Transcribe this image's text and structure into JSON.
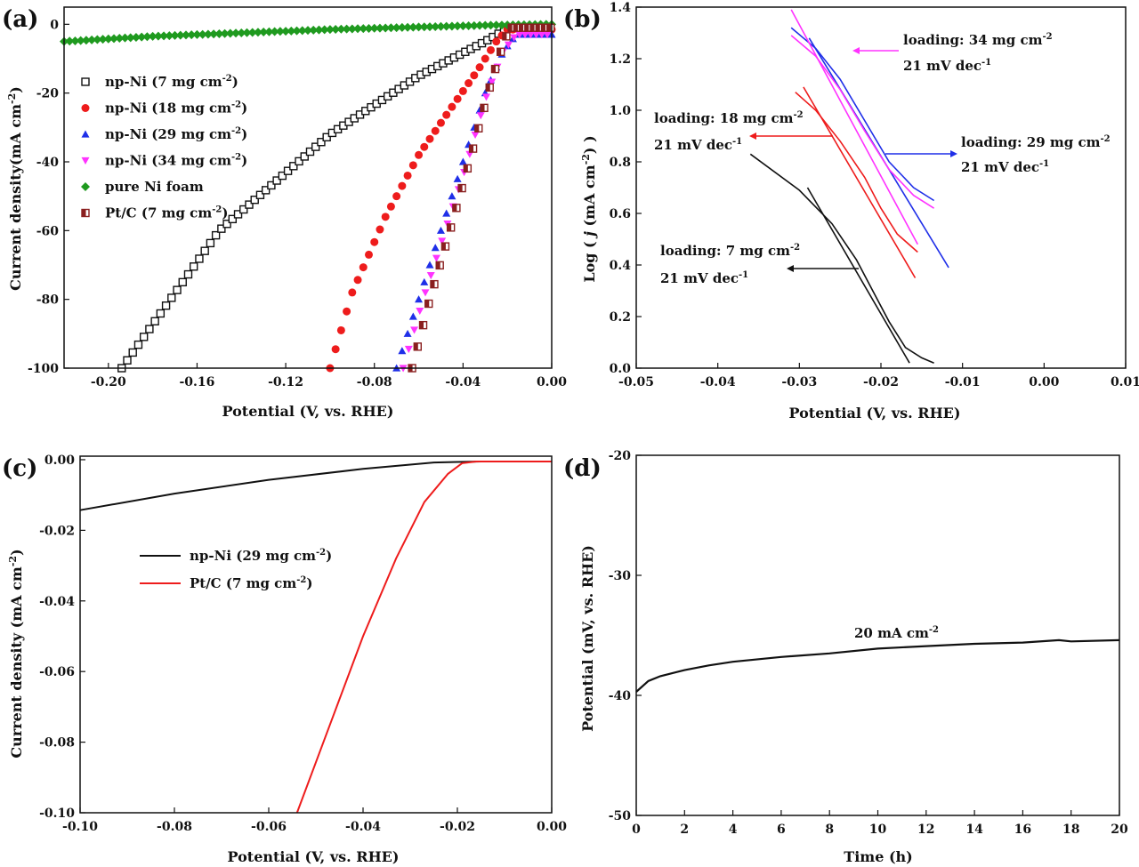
{
  "figure_labels": {
    "a": "(a)",
    "b": "(b)",
    "c": "(c)",
    "d": "(d)"
  },
  "colors": {
    "black": "#111111",
    "red": "#ee1c1c",
    "blue": "#1f2fe8",
    "magenta": "#ff33ff",
    "green": "#1f9a1f",
    "brown": "#8a1f1f"
  },
  "chart_data": [
    {
      "id": "a",
      "type": "scatter",
      "xlabel": "Potential (V, vs. RHE)",
      "ylabel": "Current density(mA cm-2)",
      "ylabel_parts": {
        "main": "Current density(mA cm",
        "sup": "-2",
        "end": ")"
      },
      "xlim": [
        -0.22,
        0.0
      ],
      "ylim": [
        -100,
        5
      ],
      "xticks": [
        -0.2,
        -0.16,
        -0.12,
        -0.08,
        -0.04,
        0.0
      ],
      "xtick_labels": [
        "-0.20",
        "-0.16",
        "-0.12",
        "-0.08",
        "-0.04",
        "0.00"
      ],
      "yticks": [
        0,
        -20,
        -40,
        -60,
        -80,
        -100
      ],
      "ytick_labels": [
        "0",
        "-20",
        "-40",
        "-60",
        "-80",
        "-100"
      ],
      "series": [
        {
          "name": "np-Ni (7 mg cm-2)",
          "label": {
            "main": "np-Ni (7 mg cm",
            "sup": "-2",
            "end": ")"
          },
          "marker": "square-open",
          "color": "#111111",
          "x": [
            -0.194,
            -0.15,
            -0.1,
            -0.06,
            -0.03,
            -0.022,
            -0.018,
            0.0
          ],
          "y": [
            -100,
            -60,
            -32,
            -15,
            -5,
            -2,
            -1,
            -1
          ]
        },
        {
          "name": "np-Ni (18 mg cm-2)",
          "label": {
            "main": "np-Ni (18 mg cm",
            "sup": "-2",
            "end": ")"
          },
          "marker": "circle",
          "color": "#ee1c1c",
          "x": [
            -0.1,
            -0.09,
            -0.075,
            -0.06,
            -0.045,
            -0.033,
            -0.025,
            -0.02,
            0.0
          ],
          "y": [
            -100,
            -78,
            -56,
            -38,
            -24,
            -13,
            -5,
            -1.5,
            -1.5
          ]
        },
        {
          "name": "np-Ni (29 mg cm-2)",
          "label": {
            "main": "np-Ni (29 mg cm",
            "sup": "-2",
            "end": ")"
          },
          "marker": "triangle-up",
          "color": "#1f2fe8",
          "x": [
            -0.07,
            -0.06,
            -0.05,
            -0.04,
            -0.03,
            -0.022,
            -0.016,
            0.0
          ],
          "y": [
            -100,
            -80,
            -60,
            -40,
            -20,
            -8,
            -3,
            -3
          ]
        },
        {
          "name": "np-Ni (34 mg cm-2)",
          "label": {
            "main": "np-Ni (34 mg cm",
            "sup": "-2",
            "end": ")"
          },
          "marker": "triangle-down",
          "color": "#ff33ff",
          "x": [
            -0.067,
            -0.058,
            -0.048,
            -0.038,
            -0.03,
            -0.022,
            -0.016,
            0.0
          ],
          "y": [
            -100,
            -80,
            -60,
            -40,
            -22,
            -8,
            -3,
            -3
          ]
        },
        {
          "name": "pure Ni foam",
          "label": {
            "main": "pure Ni foam",
            "sup": "",
            "end": ""
          },
          "marker": "diamond",
          "color": "#1f9a1f",
          "x": [
            -0.22,
            -0.18,
            -0.14,
            -0.1,
            -0.06,
            -0.03,
            0.0
          ],
          "y": [
            -5,
            -3.5,
            -2.5,
            -1.5,
            -0.8,
            -0.3,
            0
          ]
        },
        {
          "name": "Pt/C (7 mg cm-2)",
          "label": {
            "main": "Pt/C (7 mg cm",
            "sup": "-2",
            "end": ")"
          },
          "marker": "square-half",
          "color": "#8a1f1f",
          "x": [
            -0.063,
            -0.055,
            -0.045,
            -0.035,
            -0.027,
            -0.021,
            -0.018,
            0.0
          ],
          "y": [
            -100,
            -80,
            -58,
            -35,
            -16,
            -4,
            -1,
            -1
          ]
        }
      ]
    },
    {
      "id": "b",
      "type": "line",
      "xlabel": "Potential (V, vs. RHE)",
      "ylabel": "Log ( j (mA cm-2) )",
      "ylabel_parts": {
        "pre": "Log ( ",
        "j": "j",
        "main": " (mA cm",
        "sup": "-2",
        "end": ") )"
      },
      "xlim": [
        -0.05,
        0.01
      ],
      "ylim": [
        0.0,
        1.4
      ],
      "xticks": [
        -0.05,
        -0.04,
        -0.03,
        -0.02,
        -0.01,
        0.0,
        0.01
      ],
      "xtick_labels": [
        "-0.05",
        "-0.04",
        "-0.03",
        "-0.02",
        "-0.01",
        "0.00",
        "0.01"
      ],
      "yticks": [
        0.0,
        0.2,
        0.4,
        0.6,
        0.8,
        1.0,
        1.2,
        1.4
      ],
      "ytick_labels": [
        "0.0",
        "0.2",
        "0.4",
        "0.6",
        "0.8",
        "1.0",
        "1.2",
        "1.4"
      ],
      "series": [
        {
          "name": "loading 7 data",
          "color": "#111111",
          "x": [
            -0.036,
            -0.03,
            -0.026,
            -0.023,
            -0.021,
            -0.019,
            -0.017,
            -0.015,
            -0.0135
          ],
          "y": [
            0.83,
            0.69,
            0.56,
            0.42,
            0.3,
            0.18,
            0.08,
            0.04,
            0.02
          ]
        },
        {
          "name": "loading 7 fit",
          "color": "#111111",
          "x": [
            -0.029,
            -0.0165
          ],
          "y": [
            0.7,
            0.02
          ]
        },
        {
          "name": "loading 18 data",
          "color": "#ee1c1c",
          "x": [
            -0.0305,
            -0.028,
            -0.025,
            -0.022,
            -0.02,
            -0.018,
            -0.0155
          ],
          "y": [
            1.07,
            1.0,
            0.88,
            0.74,
            0.62,
            0.52,
            0.45
          ]
        },
        {
          "name": "loading 18 fit",
          "color": "#ee1c1c",
          "x": [
            -0.0295,
            -0.0158
          ],
          "y": [
            1.09,
            0.35
          ]
        },
        {
          "name": "loading 29 data",
          "color": "#1f2fe8",
          "x": [
            -0.031,
            -0.028,
            -0.025,
            -0.022,
            -0.019,
            -0.016,
            -0.0135
          ],
          "y": [
            1.32,
            1.24,
            1.12,
            0.96,
            0.8,
            0.7,
            0.65
          ]
        },
        {
          "name": "loading 29 fit",
          "color": "#1f2fe8",
          "x": [
            -0.0288,
            -0.0117
          ],
          "y": [
            1.28,
            0.39
          ]
        },
        {
          "name": "loading 34 data",
          "color": "#ff33ff",
          "x": [
            -0.031,
            -0.028,
            -0.025,
            -0.022,
            -0.019,
            -0.016,
            -0.0135
          ],
          "y": [
            1.29,
            1.21,
            1.08,
            0.92,
            0.77,
            0.67,
            0.62
          ]
        },
        {
          "name": "loading 34 fit",
          "color": "#ff33ff",
          "x": [
            -0.031,
            -0.0155
          ],
          "y": [
            1.39,
            0.48
          ]
        }
      ],
      "annotations": [
        {
          "line1": {
            "main": "loading: 34 mg cm",
            "sup": "-2"
          },
          "line2": {
            "main": "21 mV dec",
            "sup": "-1"
          },
          "color": "#ff33ff"
        },
        {
          "line1": {
            "main": "loading: 18 mg cm",
            "sup": "-2"
          },
          "line2": {
            "main": "21 mV dec",
            "sup": "-1"
          },
          "color": "#ee1c1c"
        },
        {
          "line1": {
            "main": "loading: 29 mg cm",
            "sup": "-2"
          },
          "line2": {
            "main": "21 mV dec",
            "sup": "-1"
          },
          "color": "#1f2fe8"
        },
        {
          "line1": {
            "main": "loading: 7 mg cm",
            "sup": "-2"
          },
          "line2": {
            "main": "21 mV dec",
            "sup": "-1"
          },
          "color": "#111111"
        }
      ]
    },
    {
      "id": "c",
      "type": "line",
      "xlabel": "Potential (V, vs. RHE)",
      "ylabel": "Current density (mA cm-2)",
      "ylabel_parts": {
        "main": "Current density (mA cm",
        "sup": "-2",
        "end": ")"
      },
      "xlim": [
        -0.1,
        0.0
      ],
      "ylim": [
        -0.1,
        0.001
      ],
      "xticks": [
        -0.1,
        -0.08,
        -0.06,
        -0.04,
        -0.02,
        0.0
      ],
      "xtick_labels": [
        "-0.10",
        "-0.08",
        "-0.06",
        "-0.04",
        "-0.02",
        "0.00"
      ],
      "yticks": [
        0.0,
        -0.02,
        -0.04,
        -0.06,
        -0.08,
        -0.1
      ],
      "ytick_labels": [
        "0.00",
        "-0.02",
        "-0.04",
        "-0.06",
        "-0.08",
        "-0.10"
      ],
      "series": [
        {
          "name": "np-Ni (29 mg cm-2)",
          "label": {
            "main": "np-Ni (29 mg cm",
            "sup": "-2",
            "end": ")"
          },
          "color": "#111111",
          "x": [
            -0.1,
            -0.08,
            -0.06,
            -0.04,
            -0.025,
            -0.015,
            0.0
          ],
          "y": [
            -0.0143,
            -0.0096,
            -0.0057,
            -0.0026,
            -0.0008,
            -0.0005,
            -0.0005
          ]
        },
        {
          "name": "Pt/C (7 mg cm-2)",
          "label": {
            "main": "Pt/C (7 mg cm",
            "sup": "-2",
            "end": ")"
          },
          "color": "#ee1c1c",
          "x": [
            -0.054,
            -0.047,
            -0.04,
            -0.033,
            -0.027,
            -0.022,
            -0.019,
            -0.016,
            0.0
          ],
          "y": [
            -0.1,
            -0.075,
            -0.05,
            -0.028,
            -0.012,
            -0.004,
            -0.001,
            -0.0005,
            -0.0005
          ]
        }
      ]
    },
    {
      "id": "d",
      "type": "line",
      "xlabel": "Time (h)",
      "ylabel": "Potential (mV, vs. RHE)",
      "xlim": [
        0,
        20
      ],
      "ylim": [
        -50,
        -20
      ],
      "xticks": [
        0,
        2,
        4,
        6,
        8,
        10,
        12,
        14,
        16,
        18,
        20
      ],
      "xtick_labels": [
        "0",
        "2",
        "4",
        "6",
        "8",
        "10",
        "12",
        "14",
        "16",
        "18",
        "20"
      ],
      "yticks": [
        -20,
        -30,
        -40,
        -50
      ],
      "ytick_labels": [
        "-20",
        "-30",
        "-40",
        "-50"
      ],
      "series": [
        {
          "name": "20 mA cm-2",
          "color": "#111111",
          "x": [
            0,
            0.5,
            1,
            2,
            3,
            4,
            6,
            8,
            10,
            12,
            14,
            16,
            17.5,
            18,
            20
          ],
          "y": [
            -39.7,
            -38.8,
            -38.4,
            -37.9,
            -37.5,
            -37.2,
            -36.8,
            -36.5,
            -36.1,
            -35.9,
            -35.7,
            -35.6,
            -35.4,
            -35.5,
            -35.4
          ]
        }
      ],
      "annotations": [
        {
          "line1": {
            "main": "20 mA cm",
            "sup": "-2"
          }
        }
      ]
    }
  ]
}
